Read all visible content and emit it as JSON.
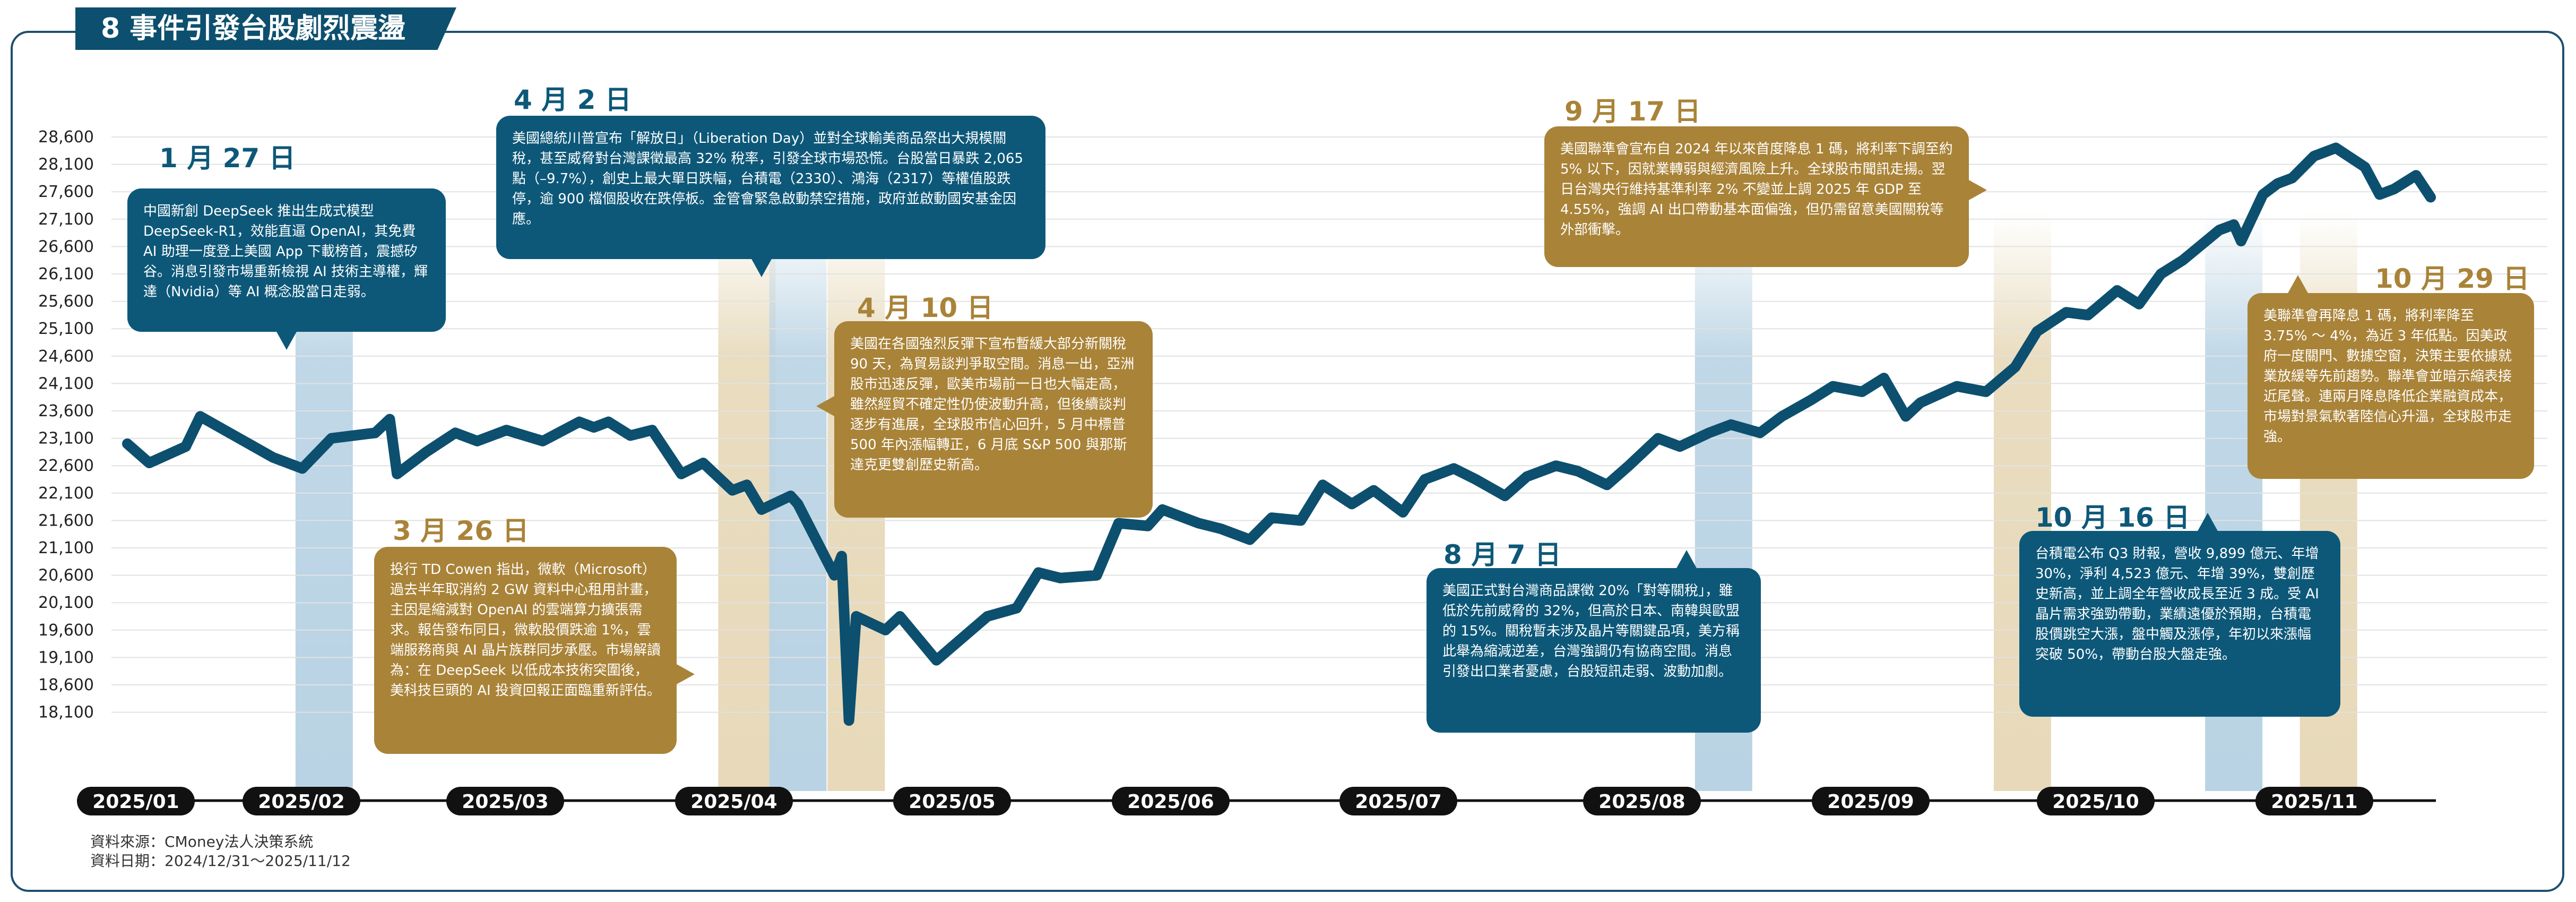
{
  "title": "8 事件引發台股劇烈震盪",
  "source": {
    "line1": "資料來源：CMoney法人決策系統",
    "line2": "資料日期：2024/12/31〜2025/11/12"
  },
  "colors": {
    "line": "#0d4f6e",
    "blue_band": "#b9d3e4",
    "gold_band": "#e7d9b9",
    "blue_box": "#0d5879",
    "gold_box": "#a98338",
    "grid": "#e2e2e2",
    "pill": "#111111"
  },
  "chart_data": {
    "type": "line",
    "title": "8 事件引發台股劇烈震盪",
    "xlabel": "",
    "ylabel": "",
    "ylim": [
      17600,
      28900
    ],
    "yticks": [
      "28,600",
      "28,100",
      "27,600",
      "27,100",
      "26,600",
      "26,100",
      "25,600",
      "25,100",
      "24,600",
      "24,100",
      "23,600",
      "23,100",
      "22,600",
      "22,100",
      "21,600",
      "21,100",
      "20,600",
      "20,100",
      "19,600",
      "19,100",
      "18,600",
      "18,100"
    ],
    "months": [
      "2025/01",
      "2025/02",
      "2025/03",
      "2025/04",
      "2025/05",
      "2025/06",
      "2025/07",
      "2025/08",
      "2025/09",
      "2025/10",
      "2025/11"
    ],
    "grid": true,
    "series": [
      {
        "name": "",
        "points": [
          [
            "2024-12-31",
            23000
          ],
          [
            "2025-01-03",
            22650
          ],
          [
            "2025-01-08",
            22950
          ],
          [
            "2025-01-10",
            23500
          ],
          [
            "2025-01-14",
            23200
          ],
          [
            "2025-01-20",
            22750
          ],
          [
            "2025-01-24",
            22550
          ],
          [
            "2025-01-28",
            23100
          ],
          [
            "2025-02-03",
            23200
          ],
          [
            "2025-02-05",
            23450
          ],
          [
            "2025-02-06",
            22450
          ],
          [
            "2025-02-10",
            22850
          ],
          [
            "2025-02-14",
            23200
          ],
          [
            "2025-02-17",
            23050
          ],
          [
            "2025-02-21",
            23250
          ],
          [
            "2025-02-26",
            23050
          ],
          [
            "2025-03-03",
            23400
          ],
          [
            "2025-03-05",
            23300
          ],
          [
            "2025-03-07",
            23400
          ],
          [
            "2025-03-10",
            23150
          ],
          [
            "2025-03-13",
            23250
          ],
          [
            "2025-03-17",
            22450
          ],
          [
            "2025-03-20",
            22650
          ],
          [
            "2025-03-24",
            22150
          ],
          [
            "2025-03-26",
            22250
          ],
          [
            "2025-03-28",
            21800
          ],
          [
            "2025-04-01",
            22050
          ],
          [
            "2025-04-02",
            21900
          ],
          [
            "2025-04-07",
            20600
          ],
          [
            "2025-04-08",
            20950
          ],
          [
            "2025-04-09",
            17950
          ],
          [
            "2025-04-10",
            19850
          ],
          [
            "2025-04-14",
            19600
          ],
          [
            "2025-04-16",
            19850
          ],
          [
            "2025-04-21",
            19050
          ],
          [
            "2025-04-28",
            19850
          ],
          [
            "2025-05-02",
            20000
          ],
          [
            "2025-05-05",
            20650
          ],
          [
            "2025-05-08",
            20550
          ],
          [
            "2025-05-13",
            20600
          ],
          [
            "2025-05-16",
            21550
          ],
          [
            "2025-05-20",
            21500
          ],
          [
            "2025-05-22",
            21800
          ],
          [
            "2025-05-27",
            21550
          ],
          [
            "2025-05-30",
            21450
          ],
          [
            "2025-06-03",
            21250
          ],
          [
            "2025-06-06",
            21650
          ],
          [
            "2025-06-10",
            21600
          ],
          [
            "2025-06-13",
            22250
          ],
          [
            "2025-06-17",
            21900
          ],
          [
            "2025-06-20",
            22150
          ],
          [
            "2025-06-24",
            21750
          ],
          [
            "2025-06-27",
            22350
          ],
          [
            "2025-07-01",
            22550
          ],
          [
            "2025-07-04",
            22350
          ],
          [
            "2025-07-08",
            22050
          ],
          [
            "2025-07-11",
            22400
          ],
          [
            "2025-07-15",
            22600
          ],
          [
            "2025-07-18",
            22500
          ],
          [
            "2025-07-22",
            22250
          ],
          [
            "2025-07-25",
            22600
          ],
          [
            "2025-07-29",
            23100
          ],
          [
            "2025-08-01",
            22950
          ],
          [
            "2025-08-05",
            23200
          ],
          [
            "2025-08-08",
            23350
          ],
          [
            "2025-08-12",
            23200
          ],
          [
            "2025-08-15",
            23500
          ],
          [
            "2025-08-19",
            23800
          ],
          [
            "2025-08-22",
            24050
          ],
          [
            "2025-08-26",
            23950
          ],
          [
            "2025-08-29",
            24200
          ],
          [
            "2025-09-01",
            23500
          ],
          [
            "2025-09-03",
            23750
          ],
          [
            "2025-09-08",
            24050
          ],
          [
            "2025-09-12",
            23950
          ],
          [
            "2025-09-16",
            24400
          ],
          [
            "2025-09-19",
            25050
          ],
          [
            "2025-09-23",
            25400
          ],
          [
            "2025-09-26",
            25350
          ],
          [
            "2025-09-30",
            25800
          ],
          [
            "2025-10-03",
            25550
          ],
          [
            "2025-10-06",
            26100
          ],
          [
            "2025-10-09",
            26350
          ],
          [
            "2025-10-14",
            26900
          ],
          [
            "2025-10-16",
            27000
          ],
          [
            "2025-10-17",
            26700
          ],
          [
            "2025-10-20",
            27550
          ],
          [
            "2025-10-22",
            27750
          ],
          [
            "2025-10-24",
            27850
          ],
          [
            "2025-10-27",
            28250
          ],
          [
            "2025-10-30",
            28400
          ],
          [
            "2025-11-03",
            28050
          ],
          [
            "2025-11-05",
            27550
          ],
          [
            "2025-11-07",
            27650
          ],
          [
            "2025-11-10",
            27900
          ],
          [
            "2025-11-12",
            27500
          ]
        ]
      }
    ],
    "event_bands": [
      {
        "date": "2025-01-27",
        "color": "blue"
      },
      {
        "date": "2025-03-26",
        "color": "gold"
      },
      {
        "date": "2025-04-02",
        "color": "blue"
      },
      {
        "date": "2025-04-10",
        "color": "gold"
      },
      {
        "date": "2025-08-07",
        "color": "blue"
      },
      {
        "date": "2025-09-17",
        "color": "gold"
      },
      {
        "date": "2025-10-16",
        "color": "blue"
      },
      {
        "date": "2025-10-29",
        "color": "gold"
      }
    ]
  },
  "events": [
    {
      "date_label": "1 月 27 日",
      "color": "blue",
      "text": "中國新創 DeepSeek 推出生成式模型 DeepSeek-R1，效能直逼 OpenAI，其免費 AI 助理一度登上美國 App 下載榜首，震撼矽谷。消息引發市場重新檢視 AI 技術主導權，輝達（Nvidia）等 AI 概念股當日走弱。"
    },
    {
      "date_label": "3 月 26 日",
      "color": "gold",
      "text": "投行 TD Cowen 指出，微軟（Microsoft）過去半年取消約 2 GW 資料中心租用計畫，主因是縮減對 OpenAI 的雲端算力擴張需求。報告發布同日，微軟股價跌逾 1%，雲端服務商與 AI 晶片族群同步承壓。市場解讀為：在 DeepSeek 以低成本技術突圍後，美科技巨頭的 AI 投資回報正面臨重新評估。"
    },
    {
      "date_label": "4 月 2 日",
      "color": "blue",
      "text": "美國總統川普宣布「解放日」（Liberation Day）並對全球輸美商品祭出大規模關稅，甚至威脅對台灣課徵最高 32% 稅率，引發全球市場恐慌。台股當日暴跌 2,065 點（–9.7%），創史上最大單日跌幅，台積電（2330）、鴻海（2317）等權值股跌停，逾 900 檔個股收在跌停板。金管會緊急啟動禁空措施，政府並啟動國安基金因應。"
    },
    {
      "date_label": "4 月 10 日",
      "color": "gold",
      "text": "美國在各國強烈反彈下宣布暫緩大部分新關稅 90 天，為貿易談判爭取空間。消息一出，亞洲股市迅速反彈，歐美市場前一日也大幅走高，雖然經貿不確定性仍使波動升高，但後續談判逐步有進展，全球股市信心回升，5 月中標普 500 年內漲幅轉正，6 月底 S&P 500 與那斯達克更雙創歷史新高。"
    },
    {
      "date_label": "8 月 7 日",
      "color": "blue",
      "text": "美國正式對台灣商品課徵 20%「對等關稅」，雖低於先前威脅的 32%，但高於日本、南韓與歐盟的 15%。關稅暫未涉及晶片等關鍵品項，美方稱此舉為縮減逆差，台灣強調仍有協商空間。消息引發出口業者憂慮，台股短訊走弱、波動加劇。"
    },
    {
      "date_label": "9 月 17 日",
      "color": "gold",
      "text": "美國聯準會宣布自 2024 年以來首度降息 1 碼，將利率下調至約 5% 以下，因就業轉弱與經濟風險上升。全球股市聞訊走揚。翌日台灣央行維持基準利率 2% 不變並上調 2025 年 GDP 至 4.55%，強調 AI 出口帶動基本面偏強，但仍需留意美國關稅等外部衝擊。"
    },
    {
      "date_label": "10 月 16 日",
      "color": "blue",
      "text": "台積電公布 Q3 財報，營收 9,899 億元、年增 30%，淨利 4,523 億元、年增 39%，雙創歷史新高，並上調全年營收成長至近 3 成。受 AI 晶片需求強勁帶動，業績遠優於預期，台積電股價跳空大漲，盤中觸及漲停，年初以來漲幅突破 50%，帶動台股大盤走強。"
    },
    {
      "date_label": "10 月 29 日",
      "color": "gold",
      "text": "美聯準會再降息 1 碼，將利率降至 3.75% ～ 4%，為近 3 年低點。因美政府一度關門、數據空窗，決策主要依據就業放緩等先前趨勢。聯準會並暗示縮表接近尾聲。連兩月降息降低企業融資成本，市場對景氣軟著陸信心升溫，全球股市走強。"
    }
  ]
}
